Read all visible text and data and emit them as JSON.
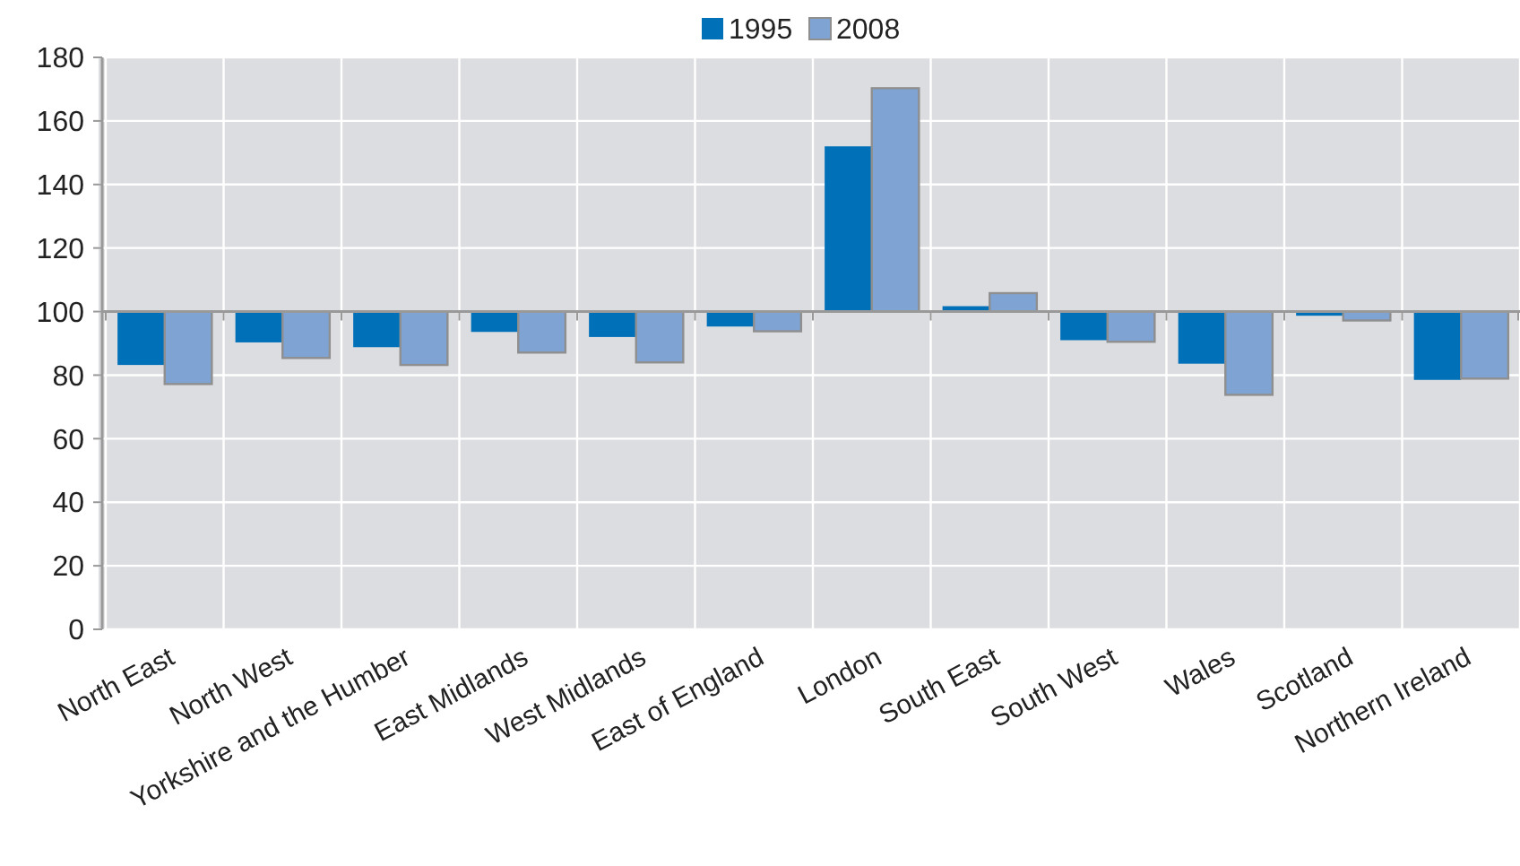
{
  "chart_data": {
    "type": "bar",
    "categories": [
      "North East",
      "North West",
      "Yorkshire and the Humber",
      "East Midlands",
      "West Midlands",
      "East of England",
      "London",
      "South East",
      "South West",
      "Wales",
      "Scotland",
      "Northern Ireland"
    ],
    "series": [
      {
        "name": "1995",
        "color": "#0070b8",
        "base": [
          100,
          100,
          100,
          100,
          100,
          100,
          100,
          100,
          100,
          100,
          100,
          100
        ],
        "values": [
          -16.8,
          -9.7,
          -11.2,
          -6.4,
          -8,
          -4.7,
          52,
          1.7,
          -9,
          -16.4,
          -1.3,
          -21.5
        ]
      },
      {
        "name": "2008",
        "color": "#7fa3d3",
        "base": [
          100,
          100,
          100,
          100,
          100,
          100,
          100,
          100,
          100,
          100,
          100,
          100
        ],
        "values": [
          -22.8,
          -14.6,
          -16.8,
          -12.9,
          -16,
          -6.2,
          70.3,
          5.8,
          -9.5,
          -26.2,
          -2.8,
          -21.1
        ]
      }
    ],
    "ylim": [
      0,
      180
    ],
    "yticks": [
      0,
      20,
      40,
      60,
      80,
      100,
      120,
      140,
      160,
      180
    ],
    "ref_lines": [
      {
        "axis": "y",
        "value": 100,
        "color": "#999999"
      }
    ],
    "grid": true,
    "legend": "top"
  }
}
